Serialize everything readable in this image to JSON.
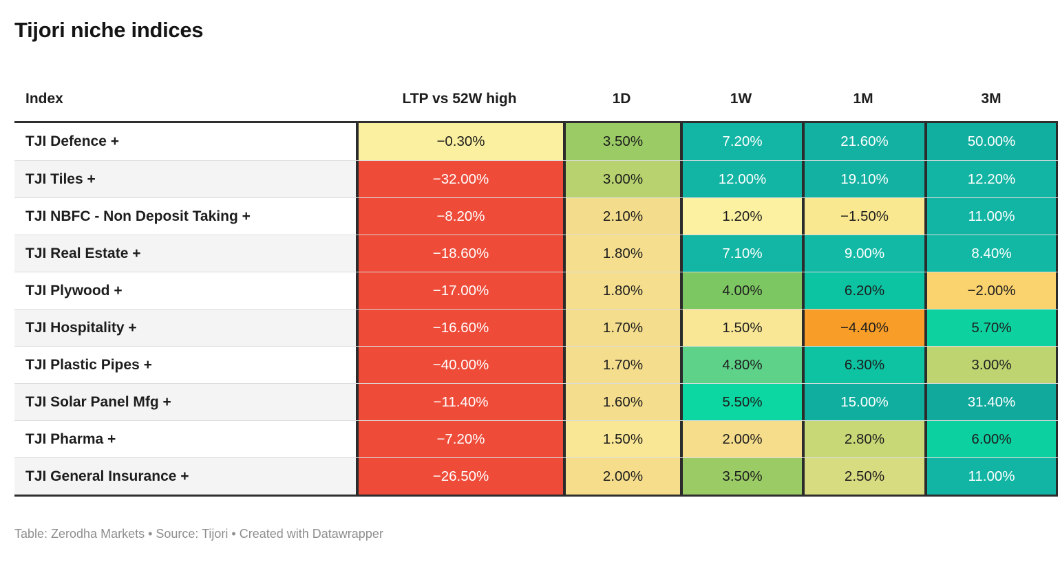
{
  "title": "Tijori niche indices",
  "footer": "Table: Zerodha Markets • Source: Tijori • Created with Datawrapper",
  "table": {
    "columns": [
      "Index",
      "LTP vs 52W high",
      "1D",
      "1W",
      "1M",
      "3M"
    ],
    "rows": [
      {
        "index": "TJI Defence +",
        "cells": [
          {
            "v": "−0.30%",
            "bg": "#fbf09f",
            "fg": "#1d1d1d"
          },
          {
            "v": "3.50%",
            "bg": "#9acb64",
            "fg": "#1d1d1d"
          },
          {
            "v": "7.20%",
            "bg": "#13b6a4",
            "fg": "#ffffff"
          },
          {
            "v": "21.60%",
            "bg": "#12b1a1",
            "fg": "#ffffff"
          },
          {
            "v": "50.00%",
            "bg": "#11af9f",
            "fg": "#ffffff"
          }
        ]
      },
      {
        "index": "TJI Tiles +",
        "cells": [
          {
            "v": "−32.00%",
            "bg": "#ee4b39",
            "fg": "#ffffff"
          },
          {
            "v": "3.00%",
            "bg": "#b7d26e",
            "fg": "#1d1d1d"
          },
          {
            "v": "12.00%",
            "bg": "#12b4a3",
            "fg": "#ffffff"
          },
          {
            "v": "19.10%",
            "bg": "#12b1a1",
            "fg": "#ffffff"
          },
          {
            "v": "12.20%",
            "bg": "#12b4a3",
            "fg": "#ffffff"
          }
        ]
      },
      {
        "index": "TJI NBFC - Non Deposit Taking +",
        "cells": [
          {
            "v": "−8.20%",
            "bg": "#ee4b39",
            "fg": "#ffffff"
          },
          {
            "v": "2.10%",
            "bg": "#f3dc8b",
            "fg": "#1d1d1d"
          },
          {
            "v": "1.20%",
            "bg": "#fcf1a1",
            "fg": "#1d1d1d"
          },
          {
            "v": "−1.50%",
            "bg": "#f9e890",
            "fg": "#1d1d1d"
          },
          {
            "v": "11.00%",
            "bg": "#12b5a4",
            "fg": "#ffffff"
          }
        ]
      },
      {
        "index": "TJI Real Estate +",
        "cells": [
          {
            "v": "−18.60%",
            "bg": "#ee4b39",
            "fg": "#ffffff"
          },
          {
            "v": "1.80%",
            "bg": "#f5df8e",
            "fg": "#1d1d1d"
          },
          {
            "v": "7.10%",
            "bg": "#13b6a4",
            "fg": "#ffffff"
          },
          {
            "v": "9.00%",
            "bg": "#12b9a5",
            "fg": "#ffffff"
          },
          {
            "v": "8.40%",
            "bg": "#13b8a5",
            "fg": "#ffffff"
          }
        ]
      },
      {
        "index": "TJI Plywood +",
        "cells": [
          {
            "v": "−17.00%",
            "bg": "#ee4b39",
            "fg": "#ffffff"
          },
          {
            "v": "1.80%",
            "bg": "#f5df8e",
            "fg": "#1d1d1d"
          },
          {
            "v": "4.00%",
            "bg": "#7dc763",
            "fg": "#1d1d1d"
          },
          {
            "v": "6.20%",
            "bg": "#0dc4a2",
            "fg": "#1d1d1d"
          },
          {
            "v": "−2.00%",
            "bg": "#fad26e",
            "fg": "#1d1d1d"
          }
        ]
      },
      {
        "index": "TJI Hospitality +",
        "cells": [
          {
            "v": "−16.60%",
            "bg": "#ee4b39",
            "fg": "#ffffff"
          },
          {
            "v": "1.70%",
            "bg": "#f4dd8d",
            "fg": "#1d1d1d"
          },
          {
            "v": "1.50%",
            "bg": "#f9e795",
            "fg": "#1d1d1d"
          },
          {
            "v": "−4.40%",
            "bg": "#f89d27",
            "fg": "#1d1d1d"
          },
          {
            "v": "5.70%",
            "bg": "#0dd2a0",
            "fg": "#1d1d1d"
          }
        ]
      },
      {
        "index": "TJI Plastic Pipes +",
        "cells": [
          {
            "v": "−40.00%",
            "bg": "#ee4b39",
            "fg": "#ffffff"
          },
          {
            "v": "1.70%",
            "bg": "#f4dd8d",
            "fg": "#1d1d1d"
          },
          {
            "v": "4.80%",
            "bg": "#5fd28a",
            "fg": "#1d1d1d"
          },
          {
            "v": "6.30%",
            "bg": "#0dc3a2",
            "fg": "#1d1d1d"
          },
          {
            "v": "3.00%",
            "bg": "#bdd471",
            "fg": "#1d1d1d"
          }
        ]
      },
      {
        "index": "TJI Solar Panel Mfg +",
        "cells": [
          {
            "v": "−11.40%",
            "bg": "#ee4b39",
            "fg": "#ffffff"
          },
          {
            "v": "1.60%",
            "bg": "#f4dd8d",
            "fg": "#1d1d1d"
          },
          {
            "v": "5.50%",
            "bg": "#0cd6a1",
            "fg": "#1d1d1d"
          },
          {
            "v": "15.00%",
            "bg": "#10ae9f",
            "fg": "#ffffff"
          },
          {
            "v": "31.40%",
            "bg": "#10a99c",
            "fg": "#ffffff"
          }
        ]
      },
      {
        "index": "TJI Pharma +",
        "cells": [
          {
            "v": "−7.20%",
            "bg": "#ee4b39",
            "fg": "#ffffff"
          },
          {
            "v": "1.50%",
            "bg": "#f9e795",
            "fg": "#1d1d1d"
          },
          {
            "v": "2.00%",
            "bg": "#f5dd8b",
            "fg": "#1d1d1d"
          },
          {
            "v": "2.80%",
            "bg": "#c9d877",
            "fg": "#1d1d1d"
          },
          {
            "v": "6.00%",
            "bg": "#0cd0a0",
            "fg": "#1d1d1d"
          }
        ]
      },
      {
        "index": "TJI General Insurance +",
        "cells": [
          {
            "v": "−26.50%",
            "bg": "#ee4b39",
            "fg": "#ffffff"
          },
          {
            "v": "2.00%",
            "bg": "#f5dd8b",
            "fg": "#1d1d1d"
          },
          {
            "v": "3.50%",
            "bg": "#9acb64",
            "fg": "#1d1d1d"
          },
          {
            "v": "2.50%",
            "bg": "#d8dc80",
            "fg": "#1d1d1d"
          },
          {
            "v": "11.00%",
            "bg": "#12b5a4",
            "fg": "#ffffff"
          }
        ]
      }
    ]
  },
  "colors": {
    "negative_strong": "#ee4b39",
    "negative_mild_orange": "#f89d27",
    "neutral_yellow": "#fcf1a1",
    "positive_green": "#9acb64",
    "positive_teal": "#12b3a2",
    "text_dark": "#1d1d1d",
    "text_light": "#ffffff",
    "stripe": "#f4f4f4",
    "border_dark": "#2b2b2b",
    "footer_gray": "#8e8e8e"
  },
  "chart_data": {
    "type": "table",
    "title": "Tijori niche indices",
    "columns": [
      "Index",
      "LTP vs 52W high",
      "1D",
      "1W",
      "1M",
      "3M"
    ],
    "rows": [
      [
        "TJI Defence +",
        -0.3,
        3.5,
        7.2,
        21.6,
        50.0
      ],
      [
        "TJI Tiles +",
        -32.0,
        3.0,
        12.0,
        19.1,
        12.2
      ],
      [
        "TJI NBFC - Non Deposit Taking +",
        -8.2,
        2.1,
        1.2,
        -1.5,
        11.0
      ],
      [
        "TJI Real Estate +",
        -18.6,
        1.8,
        7.1,
        9.0,
        8.4
      ],
      [
        "TJI Plywood +",
        -17.0,
        1.8,
        4.0,
        6.2,
        -2.0
      ],
      [
        "TJI Hospitality +",
        -16.6,
        1.7,
        1.5,
        -4.4,
        5.7
      ],
      [
        "TJI Plastic Pipes +",
        -40.0,
        1.7,
        4.8,
        6.3,
        3.0
      ],
      [
        "TJI Solar Panel Mfg +",
        -11.4,
        1.6,
        5.5,
        15.0,
        31.4
      ],
      [
        "TJI Pharma +",
        -7.2,
        1.5,
        2.0,
        2.8,
        6.0
      ],
      [
        "TJI General Insurance +",
        -26.5,
        2.0,
        3.5,
        2.5,
        11.0
      ]
    ],
    "units": "percent",
    "legend_position": "none",
    "notes": "heatmap shading: red = strongly negative, yellow = near zero, green/teal = positive"
  }
}
